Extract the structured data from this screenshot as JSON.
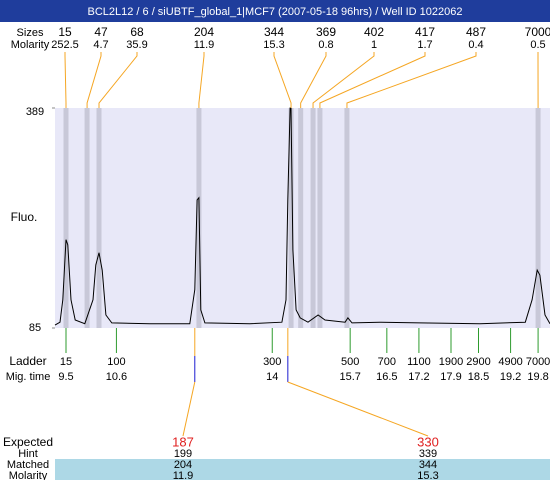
{
  "header": {
    "title": "BCL2L12 / 6 / siUBTF_global_1|MCF7 (2007-05-18 96hrs) / Well ID 1022062"
  },
  "row_labels": {
    "sizes": "Sizes",
    "molarity_top": "Molarity",
    "fluo": "Fluo.",
    "ladder": "Ladder",
    "mig_time": "Mig. time",
    "expected": "Expected",
    "hint": "Hint",
    "matched": "Matched",
    "molarity_bottom": "Molarity"
  },
  "chart_data": {
    "type": "line",
    "color": "#000000",
    "band_color": "#c8c8d8",
    "plot_background": "#e8e8f8",
    "xlim": [
      9.26,
      20.06
    ],
    "ylim": [
      85,
      389
    ],
    "yticks": [
      85,
      389
    ],
    "x": [
      9.26,
      9.37,
      9.43,
      9.5,
      9.54,
      9.61,
      9.7,
      9.91,
      10.09,
      10.15,
      10.22,
      10.29,
      10.37,
      10.5,
      11.33,
      12.2,
      12.31,
      12.36,
      12.4,
      12.44,
      12.53,
      13.51,
      14.21,
      14.3,
      14.34,
      14.39,
      14.41,
      14.45,
      14.52,
      14.61,
      14.78,
      15.0,
      15.15,
      15.59,
      15.65,
      15.74,
      16.35,
      17.22,
      18.53,
      19.52,
      19.67,
      19.78,
      19.84,
      19.95,
      20.06
    ],
    "values": [
      89,
      93,
      124,
      207,
      200,
      124,
      96,
      91,
      124,
      172,
      189,
      165,
      103,
      92,
      91,
      91,
      138,
      262,
      265,
      110,
      92,
      91,
      93,
      124,
      262,
      389,
      389,
      193,
      110,
      99,
      93,
      103,
      96,
      93,
      99,
      92,
      93,
      92,
      91,
      93,
      124,
      165,
      158,
      103,
      91
    ],
    "peaks": [
      {
        "size": 15,
        "molarity": 252.5,
        "time": 9.5
      },
      {
        "size": 47,
        "molarity": 4.7,
        "time": 9.96
      },
      {
        "size": 68,
        "molarity": 35.9,
        "time": 10.22
      },
      {
        "size": 204,
        "molarity": 11.9,
        "time": 12.4
      },
      {
        "size": 344,
        "molarity": 15.3,
        "time": 14.41
      },
      {
        "size": 369,
        "molarity": 0.8,
        "time": 14.62
      },
      {
        "size": 402,
        "molarity": 1,
        "time": 14.89
      },
      {
        "size": 417,
        "molarity": 1.7,
        "time": 15.04
      },
      {
        "size": 487,
        "molarity": 0.4,
        "time": 15.63
      },
      {
        "size": 7000,
        "molarity": 0.5,
        "time": 19.8
      }
    ],
    "ladder": [
      {
        "size": 15,
        "time": 9.5
      },
      {
        "size": 100,
        "time": 10.6
      },
      {
        "size": 300,
        "time": 14
      },
      {
        "size": 500,
        "time": 15.7
      },
      {
        "size": 700,
        "time": 16.5
      },
      {
        "size": 1100,
        "time": 17.2
      },
      {
        "size": 1900,
        "time": 17.9
      },
      {
        "size": 2900,
        "time": 18.5
      },
      {
        "size": 4900,
        "time": 19.2
      },
      {
        "size": 7000,
        "time": 19.8
      }
    ],
    "expected": [
      {
        "expected": 187,
        "hint": 199,
        "matched": 204,
        "molarity": 11.9,
        "marker_time": 12.31
      },
      {
        "expected": 330,
        "hint": 339,
        "matched": 344,
        "molarity": 15.3,
        "marker_time": 14.34
      }
    ]
  }
}
